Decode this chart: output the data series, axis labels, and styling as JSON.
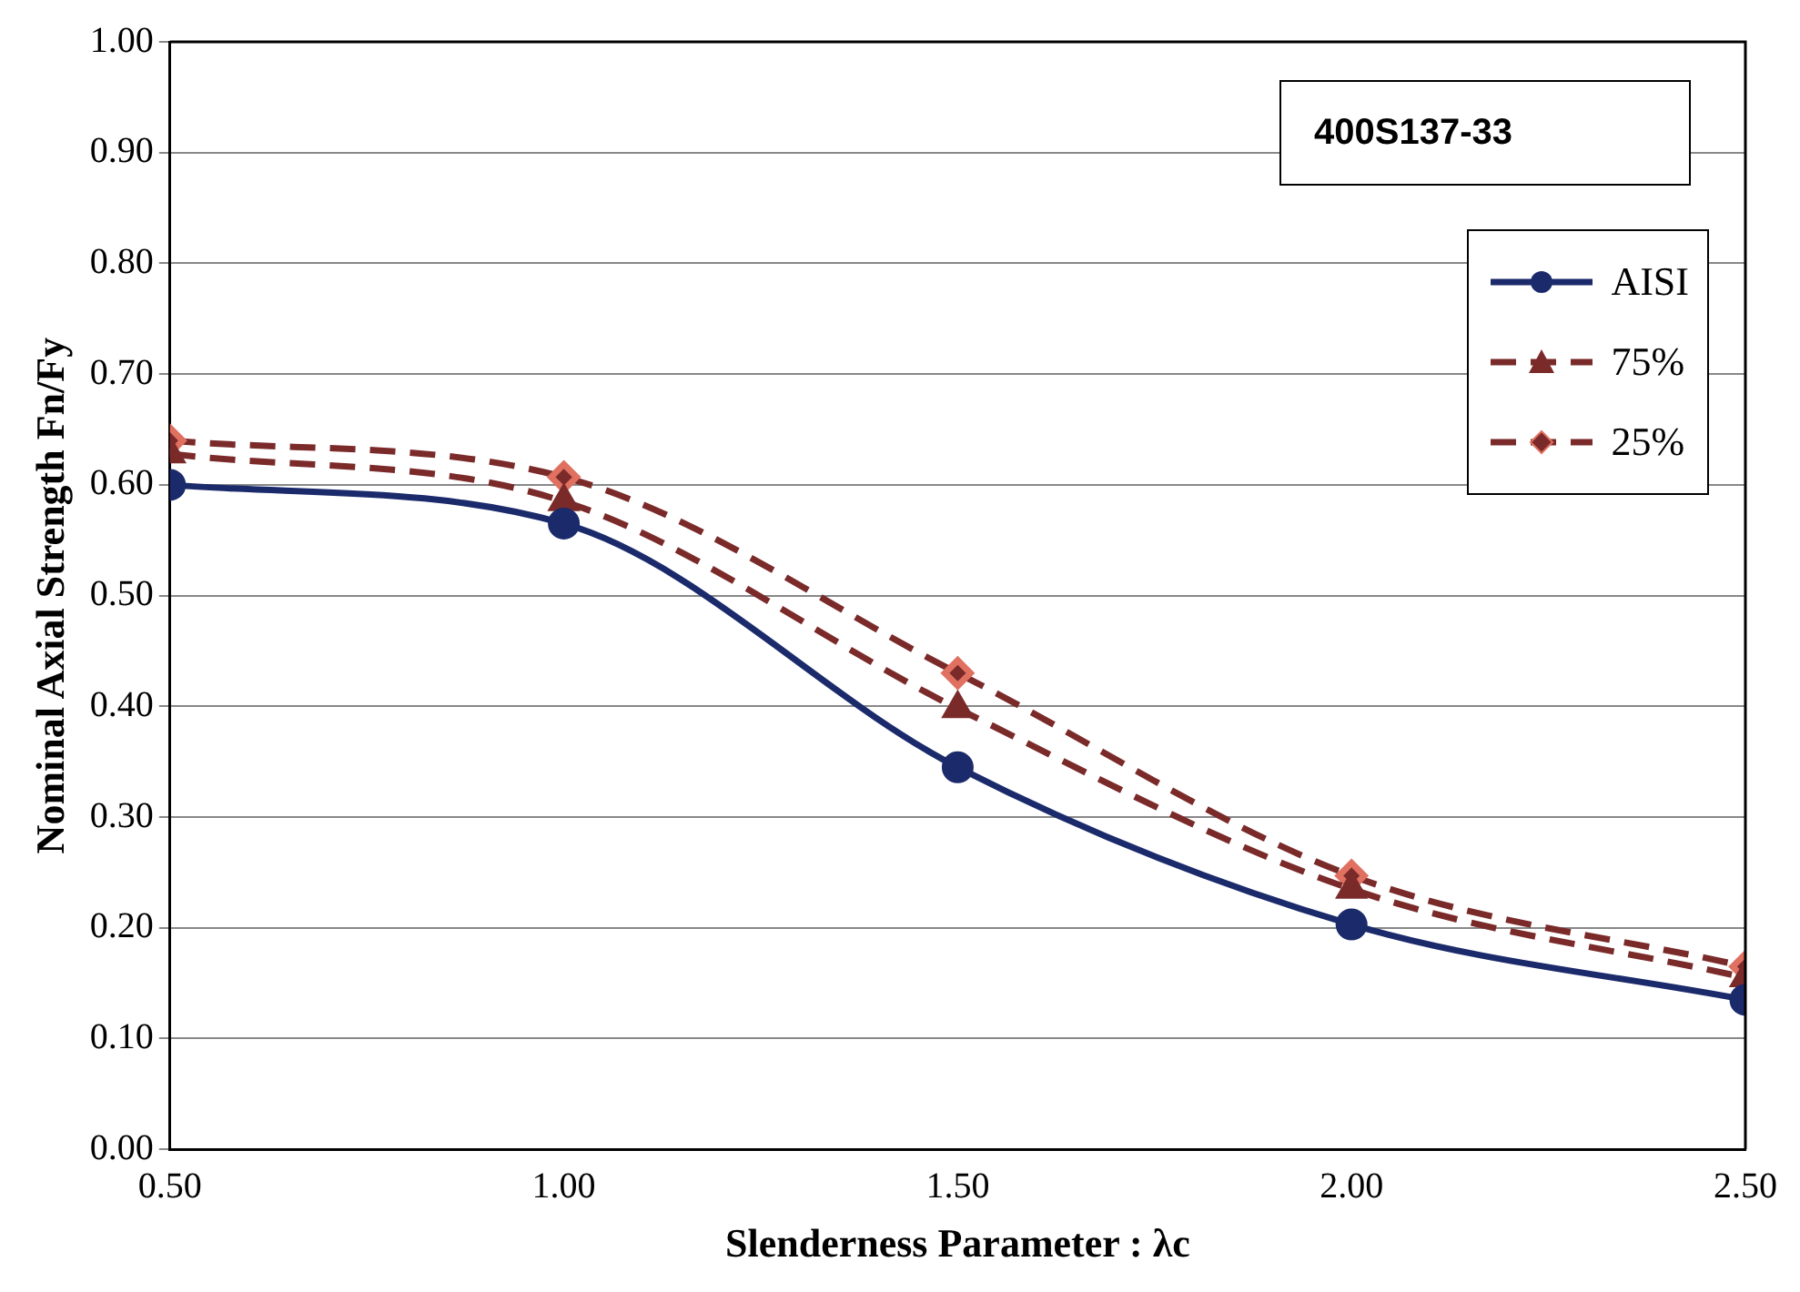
{
  "chart_data": {
    "type": "line",
    "legend_title": "400S137-33",
    "xlabel": "Slenderness Parameter : λc",
    "ylabel": "Nominal Axial Strength Fn/Fy",
    "x": [
      0.5,
      1.0,
      1.5,
      2.0,
      2.5
    ],
    "series": [
      {
        "name": "AISI",
        "color": "#1b2a6b",
        "marker": "circle",
        "line_style": "solid",
        "values": [
          0.6,
          0.565,
          0.345,
          0.203,
          0.135
        ]
      },
      {
        "name": "75%",
        "color": "#7b2a2a",
        "marker": "triangle",
        "line_style": "dashed",
        "values": [
          0.628,
          0.585,
          0.398,
          0.235,
          0.155
        ]
      },
      {
        "name": "25%",
        "color": "#7b2a2a",
        "marker": "diamond",
        "line_style": "dashed",
        "values": [
          0.64,
          0.607,
          0.43,
          0.247,
          0.165
        ]
      }
    ],
    "xlim": [
      0.5,
      2.5
    ],
    "xticks": [
      {
        "value": 0.5,
        "label": "0.50"
      },
      {
        "value": 1.0,
        "label": "1.00"
      },
      {
        "value": 1.5,
        "label": "1.50"
      },
      {
        "value": 2.0,
        "label": "2.00"
      },
      {
        "value": 2.5,
        "label": "2.50"
      }
    ],
    "ylim": [
      0,
      1
    ],
    "yticks": [
      {
        "value": 0,
        "label": "0.00"
      },
      {
        "value": 0.1,
        "label": "0.10"
      },
      {
        "value": 0.2,
        "label": "0.20"
      },
      {
        "value": 0.3,
        "label": "0.30"
      },
      {
        "value": 0.4,
        "label": "0.40"
      },
      {
        "value": 0.5,
        "label": "0.50"
      },
      {
        "value": 0.6,
        "label": "0.60"
      },
      {
        "value": 0.7,
        "label": "0.70"
      },
      {
        "value": 0.8,
        "label": "0.80"
      },
      {
        "value": 0.9,
        "label": "0.90"
      },
      {
        "value": 1,
        "label": "1.00"
      }
    ],
    "grid": "y",
    "legend": "top right"
  }
}
